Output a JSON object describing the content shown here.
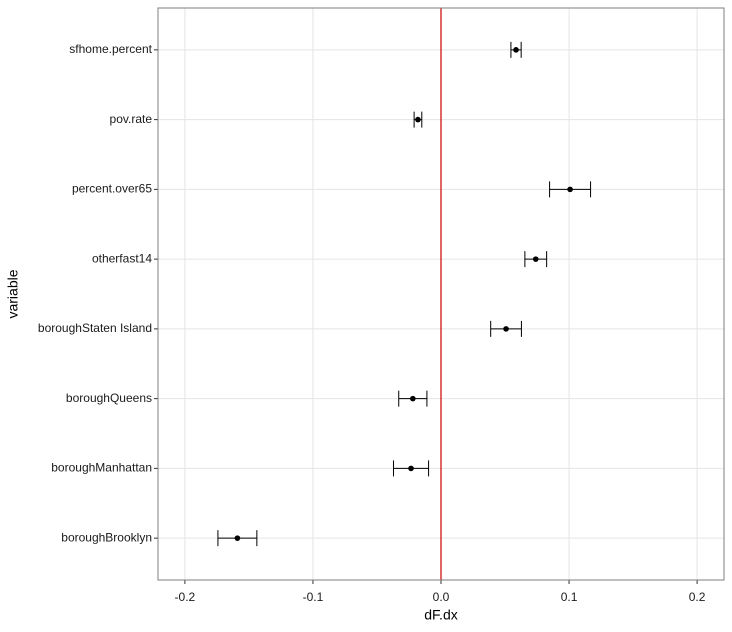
{
  "chart_data": {
    "type": "errorbar",
    "x_label": "dF.dx",
    "y_label": "variable",
    "categories": [
      "boroughBrooklyn",
      "boroughManhattan",
      "boroughQueens",
      "boroughStaten Island",
      "otherfast14",
      "percent.over65",
      "pov.rate",
      "sfhome.percent"
    ],
    "values": [
      -0.159,
      -0.0234,
      -0.022,
      0.0508,
      0.074,
      0.1008,
      -0.018,
      0.0586
    ],
    "errors": [
      0.0152,
      0.0137,
      0.011,
      0.012,
      0.0085,
      0.016,
      0.003,
      0.004
    ],
    "color": "#000000",
    "xlim": [
      -0.221,
      0.221
    ],
    "xticks": [
      -0.2,
      -0.1,
      {
        "value": 0,
        "label": "0.0"
      },
      0.1,
      0.2
    ],
    "reference_line": 0,
    "reference_color": "#cc0000",
    "grid": true
  }
}
